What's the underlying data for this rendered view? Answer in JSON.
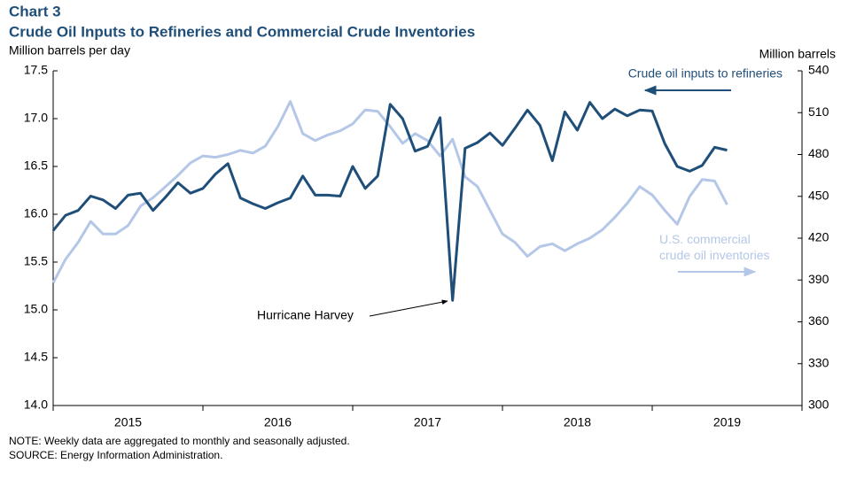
{
  "chart_data": {
    "type": "line",
    "title": "Chart 3",
    "subtitle": "Crude Oil Inputs to Refineries and Commercial Crude Inventories",
    "y_label": "Million barrels per day",
    "y2_label": "Million barrels",
    "categories": [
      null,
      null,
      null,
      null,
      null,
      null,
      null,
      null,
      null,
      null,
      null,
      null,
      null,
      null,
      null,
      null,
      null,
      null,
      null,
      null,
      null,
      null,
      null,
      null,
      null,
      null,
      null,
      null,
      null,
      null,
      null,
      null,
      null,
      null,
      null,
      null,
      null,
      null,
      null,
      null,
      null,
      null,
      null,
      null,
      null,
      null,
      null,
      null,
      null,
      null,
      null,
      null,
      null,
      null,
      null,
      null,
      null,
      null,
      null,
      null
    ],
    "x_groups": [
      "2015",
      "2016",
      "2017",
      "2018",
      "2019"
    ],
    "ylim": [
      14,
      17.5
    ],
    "yticks": [
      {
        "value": 14,
        "label": "14.0"
      },
      14.5,
      {
        "value": 15,
        "label": "15.0"
      },
      15.5,
      {
        "value": 16,
        "label": "16.0"
      },
      16.5,
      {
        "value": 17,
        "label": "17.0"
      },
      17.5
    ],
    "y2lim": [
      300,
      540
    ],
    "y2ticks": [
      300,
      330,
      360,
      390,
      420,
      450,
      480,
      510,
      540
    ],
    "series": [
      {
        "name": "Crude oil inputs to refineries",
        "color": "#1f4e79",
        "values": [
          15.83,
          15.99,
          16.04,
          16.19,
          16.15,
          16.06,
          16.2,
          16.22,
          16.04,
          16.18,
          16.33,
          16.22,
          16.27,
          16.42,
          16.53,
          16.17,
          16.11,
          16.06,
          16.12,
          16.17,
          16.4,
          16.2,
          16.2,
          16.19,
          16.5,
          16.27,
          16.4,
          17.15,
          17.0,
          16.66,
          16.71,
          17.01,
          15.1,
          16.69,
          16.75,
          16.85,
          16.72,
          16.9,
          17.09,
          16.93,
          16.56,
          17.07,
          16.88,
          17.17,
          17.0,
          17.1,
          17.03,
          17.09,
          17.08,
          16.74,
          16.5,
          16.45,
          16.51,
          16.7,
          16.67,
          null,
          null,
          null,
          null,
          null
        ]
      },
      {
        "name": "U.S. commercial crude oil inventories",
        "color": "#b4c7e7",
        "axis": "y2",
        "values": [
          388,
          405,
          417,
          432,
          423,
          423,
          429,
          443,
          449,
          457,
          465,
          474,
          479,
          478,
          480,
          483,
          481,
          486,
          500,
          518,
          495,
          490,
          494,
          497,
          502,
          512,
          511,
          500,
          488,
          495,
          490,
          479,
          491,
          464,
          457,
          440,
          423,
          417,
          407,
          414,
          416,
          411,
          416,
          420,
          426,
          435,
          445,
          457,
          451,
          440,
          430,
          450,
          462,
          461,
          444,
          null,
          null,
          null,
          null,
          null
        ]
      }
    ],
    "annotations": [
      "Hurricane Harvey"
    ],
    "notes": [
      "NOTE: Weekly data are aggregated  to monthly and seasonally adjusted.",
      "SOURCE: Energy Information  Administration."
    ]
  }
}
